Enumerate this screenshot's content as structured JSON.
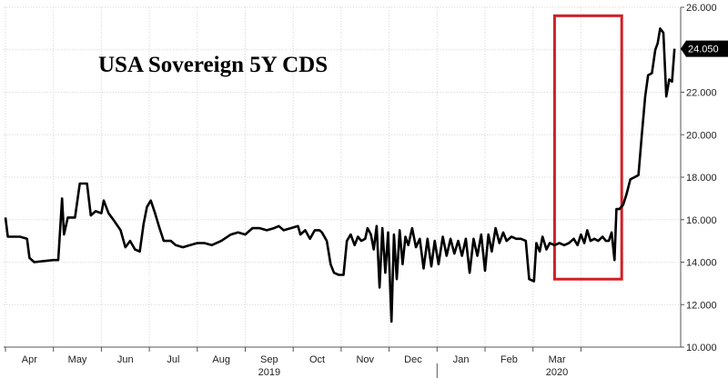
{
  "chart_data": {
    "type": "line",
    "title": "USA Sovereign 5Y CDS",
    "xlabel": "",
    "ylabel": "",
    "ylim": [
      10,
      26
    ],
    "y_ticks": [
      "10.000",
      "12.000",
      "14.000",
      "16.000",
      "18.000",
      "20.000",
      "22.000",
      "24.000",
      "26.000"
    ],
    "x_tick_labels": [
      "Apr",
      "May",
      "Jun",
      "Jul",
      "Aug",
      "Sep",
      "Oct",
      "Nov",
      "Dec",
      "Jan",
      "Feb",
      "Mar"
    ],
    "year_labels": [
      "2019",
      "2020"
    ],
    "last_value_label": "24.050",
    "line_color": "#000000",
    "highlight_color": "#d01f26",
    "grid": true,
    "highlight_range": {
      "x_start": 11.45,
      "x_end": 12.85,
      "y_low": 13.2,
      "y_high": 25.6
    },
    "series": [
      {
        "values": [
          [
            0.0,
            16.1
          ],
          [
            0.05,
            15.2
          ],
          [
            0.3,
            15.2
          ],
          [
            0.45,
            15.1
          ],
          [
            0.5,
            14.2
          ],
          [
            0.6,
            14.0
          ],
          [
            0.8,
            14.05
          ],
          [
            1.0,
            14.1
          ],
          [
            1.1,
            14.1
          ],
          [
            1.18,
            17.0
          ],
          [
            1.22,
            15.3
          ],
          [
            1.3,
            16.1
          ],
          [
            1.45,
            16.1
          ],
          [
            1.55,
            17.7
          ],
          [
            1.7,
            17.7
          ],
          [
            1.78,
            16.2
          ],
          [
            1.88,
            16.4
          ],
          [
            2.0,
            16.3
          ],
          [
            2.05,
            16.9
          ],
          [
            2.15,
            16.3
          ],
          [
            2.25,
            16.0
          ],
          [
            2.4,
            15.5
          ],
          [
            2.5,
            14.7
          ],
          [
            2.6,
            15.0
          ],
          [
            2.7,
            14.6
          ],
          [
            2.8,
            14.5
          ],
          [
            2.88,
            15.8
          ],
          [
            2.95,
            16.6
          ],
          [
            3.03,
            16.9
          ],
          [
            3.12,
            16.3
          ],
          [
            3.2,
            15.7
          ],
          [
            3.3,
            15.0
          ],
          [
            3.45,
            15.0
          ],
          [
            3.55,
            14.8
          ],
          [
            3.7,
            14.7
          ],
          [
            3.85,
            14.8
          ],
          [
            4.0,
            14.9
          ],
          [
            4.15,
            14.9
          ],
          [
            4.3,
            14.8
          ],
          [
            4.5,
            15.0
          ],
          [
            4.7,
            15.3
          ],
          [
            4.85,
            15.4
          ],
          [
            5.0,
            15.3
          ],
          [
            5.15,
            15.6
          ],
          [
            5.3,
            15.6
          ],
          [
            5.45,
            15.5
          ],
          [
            5.6,
            15.6
          ],
          [
            5.7,
            15.7
          ],
          [
            5.8,
            15.5
          ],
          [
            5.95,
            15.6
          ],
          [
            6.1,
            15.7
          ],
          [
            6.15,
            15.3
          ],
          [
            6.25,
            15.5
          ],
          [
            6.35,
            15.1
          ],
          [
            6.45,
            15.5
          ],
          [
            6.55,
            15.5
          ],
          [
            6.6,
            15.4
          ],
          [
            6.7,
            15.0
          ],
          [
            6.78,
            13.9
          ],
          [
            6.85,
            13.5
          ],
          [
            6.95,
            13.4
          ],
          [
            7.05,
            13.4
          ],
          [
            7.12,
            15.0
          ],
          [
            7.2,
            15.3
          ],
          [
            7.28,
            14.8
          ],
          [
            7.35,
            15.2
          ],
          [
            7.42,
            15.0
          ],
          [
            7.5,
            15.1
          ],
          [
            7.55,
            15.6
          ],
          [
            7.62,
            15.3
          ],
          [
            7.68,
            14.6
          ],
          [
            7.74,
            15.7
          ],
          [
            7.8,
            12.8
          ],
          [
            7.86,
            15.6
          ],
          [
            7.92,
            13.5
          ],
          [
            7.98,
            15.4
          ],
          [
            8.05,
            11.2
          ],
          [
            8.1,
            15.3
          ],
          [
            8.16,
            13.2
          ],
          [
            8.22,
            15.5
          ],
          [
            8.28,
            13.9
          ],
          [
            8.34,
            15.2
          ],
          [
            8.4,
            14.8
          ],
          [
            8.48,
            15.6
          ],
          [
            8.56,
            14.7
          ],
          [
            8.64,
            15.1
          ],
          [
            8.72,
            13.7
          ],
          [
            8.8,
            15.1
          ],
          [
            8.88,
            13.8
          ],
          [
            8.95,
            15.0
          ],
          [
            9.03,
            13.9
          ],
          [
            9.12,
            15.2
          ],
          [
            9.2,
            14.3
          ],
          [
            9.28,
            15.1
          ],
          [
            9.36,
            14.4
          ],
          [
            9.44,
            15.0
          ],
          [
            9.52,
            14.3
          ],
          [
            9.6,
            15.1
          ],
          [
            9.68,
            13.5
          ],
          [
            9.76,
            15.1
          ],
          [
            9.84,
            14.3
          ],
          [
            9.92,
            15.3
          ],
          [
            10.0,
            13.6
          ],
          [
            10.07,
            15.3
          ],
          [
            10.14,
            14.5
          ],
          [
            10.22,
            15.6
          ],
          [
            10.3,
            14.9
          ],
          [
            10.38,
            15.4
          ],
          [
            10.45,
            15.0
          ],
          [
            10.55,
            15.2
          ],
          [
            10.65,
            15.1
          ],
          [
            10.75,
            15.1
          ],
          [
            10.85,
            15.0
          ],
          [
            10.92,
            13.2
          ],
          [
            11.02,
            13.1
          ],
          [
            11.07,
            14.9
          ],
          [
            11.14,
            14.5
          ],
          [
            11.2,
            15.2
          ],
          [
            11.28,
            14.6
          ],
          [
            11.35,
            14.9
          ],
          [
            11.45,
            14.8
          ],
          [
            11.55,
            14.9
          ],
          [
            11.65,
            14.8
          ],
          [
            11.75,
            14.9
          ],
          [
            11.85,
            15.1
          ],
          [
            11.93,
            14.8
          ],
          [
            12.0,
            15.3
          ],
          [
            12.07,
            14.9
          ],
          [
            12.13,
            15.5
          ],
          [
            12.2,
            15.0
          ],
          [
            12.28,
            15.1
          ],
          [
            12.36,
            15.0
          ],
          [
            12.45,
            15.2
          ],
          [
            12.52,
            15.0
          ],
          [
            12.58,
            15.0
          ],
          [
            12.64,
            15.4
          ],
          [
            12.7,
            14.1
          ],
          [
            12.74,
            16.5
          ],
          [
            12.8,
            16.5
          ],
          [
            12.88,
            16.7
          ],
          [
            12.95,
            17.2
          ],
          [
            13.03,
            17.9
          ],
          [
            13.12,
            18.0
          ],
          [
            13.2,
            18.1
          ],
          [
            13.27,
            20.0
          ],
          [
            13.34,
            21.8
          ],
          [
            13.4,
            22.8
          ],
          [
            13.48,
            22.9
          ],
          [
            13.55,
            24.0
          ],
          [
            13.6,
            24.3
          ],
          [
            13.65,
            25.0
          ],
          [
            13.72,
            24.8
          ],
          [
            13.78,
            21.8
          ],
          [
            13.84,
            22.6
          ],
          [
            13.9,
            22.5
          ],
          [
            13.95,
            24.05
          ]
        ]
      }
    ]
  }
}
